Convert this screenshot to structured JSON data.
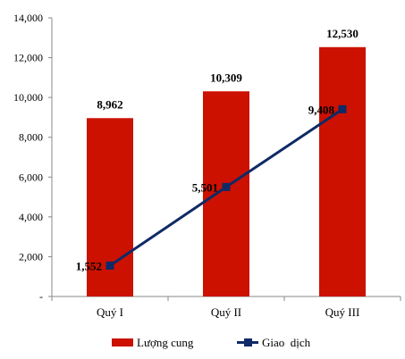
{
  "chart_data": {
    "type": "bar+line",
    "categories": [
      "Quý I",
      "Quý II",
      "Quý III"
    ],
    "series": [
      {
        "name": "Lượng cung",
        "kind": "bar",
        "color": "#cc1100",
        "values": [
          8962,
          10309,
          12530
        ],
        "labels": [
          "8,962",
          "10,309",
          "12,530"
        ]
      },
      {
        "name": "Giao  dịch",
        "kind": "line",
        "color": "#0f2a66",
        "marker": "square",
        "values": [
          1552,
          5501,
          9408
        ],
        "labels": [
          "1,552",
          "5,501",
          "9,408"
        ]
      }
    ],
    "ylim": [
      0,
      14000
    ],
    "yticks": [
      0,
      2000,
      4000,
      6000,
      8000,
      10000,
      12000,
      14000
    ],
    "ytick_labels": [
      "-",
      "2,000",
      "4,000",
      "6,000",
      "8,000",
      "10,000",
      "12,000",
      "14,000"
    ],
    "grid": false,
    "legend_position": "bottom"
  }
}
